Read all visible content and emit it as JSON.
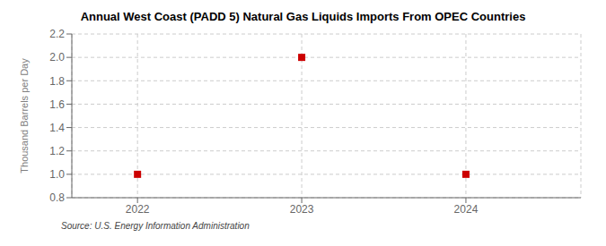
{
  "chart_data": {
    "type": "scatter",
    "title": "Annual West Coast (PADD 5) Natural Gas Liquids Imports From OPEC Countries",
    "ylabel": "Thousand Barrels per Day",
    "annotations": [
      "Source: U.S. Energy Information Administration"
    ],
    "x": [
      2022,
      2023,
      2024
    ],
    "values": [
      1.0,
      2.0,
      1.0
    ],
    "color": "#cc0000",
    "marker": "square",
    "xlim": [
      2021.6,
      2024.7
    ],
    "ylim": [
      0.8,
      2.2
    ],
    "xticks": [
      2022,
      2023,
      2024
    ],
    "yticks": [
      0.8,
      {
        "value": 1.0,
        "label": "1.0"
      },
      1.2,
      1.4,
      1.6,
      1.8,
      {
        "value": 2.0,
        "label": "2.0"
      },
      2.2
    ],
    "grid": true
  }
}
